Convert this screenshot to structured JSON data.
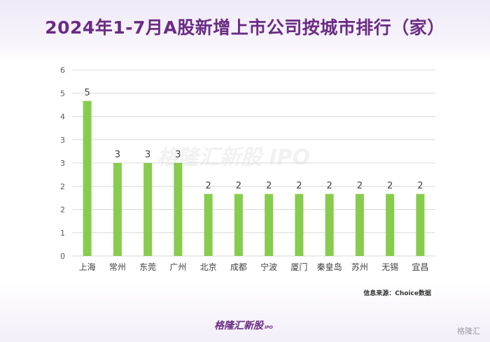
{
  "title": "2024年1-7月A股新增上市公司按城市排行（家）",
  "source": "信息来源：Choice数据",
  "brand": {
    "name": "格隆汇新股",
    "suffix": "IPO"
  },
  "watermark": "格隆汇新股 IPO",
  "corner_logo": "格隆汇",
  "colors": {
    "bar": "#88cc4e",
    "title": "#6a2c84",
    "grid": "#d9d9d9"
  },
  "chart_data": {
    "type": "bar",
    "categories": [
      "上海",
      "常州",
      "东莞",
      "广州",
      "北京",
      "成都",
      "宁波",
      "厦门",
      "秦皇岛",
      "苏州",
      "无锡",
      "宜昌"
    ],
    "values": [
      5,
      3,
      3,
      3,
      2,
      2,
      2,
      2,
      2,
      2,
      2,
      2
    ],
    "ylim": [
      0,
      6
    ],
    "yticks": [
      "0",
      "1",
      "2",
      "2",
      "3",
      "3",
      "4",
      "5",
      "6"
    ],
    "grid": true,
    "data_labels": true
  }
}
